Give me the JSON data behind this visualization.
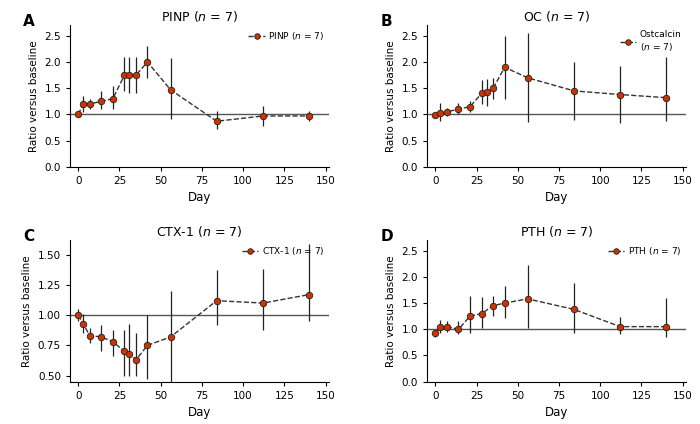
{
  "panel_A": {
    "title": "PINP ($n$ = 7)",
    "legend": "PINP ($n$ = 7)",
    "x": [
      0,
      3,
      7,
      14,
      21,
      28,
      31,
      35,
      42,
      56,
      84,
      112,
      140
    ],
    "y": [
      1.0,
      1.2,
      1.2,
      1.25,
      1.3,
      1.75,
      1.75,
      1.75,
      2.0,
      1.47,
      0.87,
      0.97,
      0.97
    ],
    "yerr_lo": [
      0.05,
      0.15,
      0.1,
      0.15,
      0.2,
      0.3,
      0.35,
      0.35,
      0.3,
      0.55,
      0.15,
      0.2,
      0.1
    ],
    "yerr_hi": [
      0.05,
      0.15,
      0.1,
      0.2,
      0.25,
      0.35,
      0.35,
      0.35,
      0.3,
      0.6,
      0.2,
      0.2,
      0.1
    ],
    "ylim": [
      0,
      2.7
    ],
    "yticks": [
      0,
      0.5,
      1.0,
      1.5,
      2.0,
      2.5
    ]
  },
  "panel_B": {
    "title": "OC ($n$ = 7)",
    "legend": "Ostcalcin\n($n$ = 7)",
    "x": [
      0,
      3,
      7,
      14,
      21,
      28,
      31,
      35,
      42,
      56,
      84,
      112,
      140
    ],
    "y": [
      0.98,
      1.02,
      1.05,
      1.1,
      1.15,
      1.4,
      1.42,
      1.5,
      1.9,
      1.7,
      1.45,
      1.38,
      1.32
    ],
    "yerr_lo": [
      0.05,
      0.15,
      0.08,
      0.1,
      0.1,
      0.2,
      0.25,
      0.2,
      0.6,
      0.85,
      0.55,
      0.55,
      0.45
    ],
    "yerr_hi": [
      0.05,
      0.2,
      0.08,
      0.12,
      0.1,
      0.25,
      0.25,
      0.2,
      0.6,
      0.85,
      0.55,
      0.55,
      0.78
    ],
    "ylim": [
      0,
      2.7
    ],
    "yticks": [
      0,
      0.5,
      1.0,
      1.5,
      2.0,
      2.5
    ]
  },
  "panel_C": {
    "title": "CTX-1 ($n$ = 7)",
    "legend": "CTX-1 ($n$ = 7)",
    "x": [
      0,
      3,
      7,
      14,
      21,
      28,
      31,
      35,
      42,
      56,
      84,
      112,
      140
    ],
    "y": [
      1.0,
      0.93,
      0.83,
      0.82,
      0.78,
      0.7,
      0.68,
      0.63,
      0.75,
      0.82,
      1.12,
      1.1,
      1.17
    ],
    "yerr_lo": [
      0.05,
      0.08,
      0.06,
      0.12,
      0.12,
      0.2,
      0.18,
      0.13,
      0.28,
      0.45,
      0.2,
      0.22,
      0.22
    ],
    "yerr_hi": [
      0.05,
      0.08,
      0.06,
      0.1,
      0.1,
      0.18,
      0.25,
      0.22,
      0.25,
      0.38,
      0.25,
      0.28,
      0.42
    ],
    "ylim": [
      0.45,
      1.62
    ],
    "yticks": [
      0.5,
      0.75,
      1.0,
      1.25,
      1.5
    ]
  },
  "panel_D": {
    "title": "PTH ($n$ = 7)",
    "legend": "PTH ($n$ = 7)",
    "x": [
      0,
      3,
      7,
      14,
      21,
      28,
      35,
      42,
      56,
      84,
      112,
      140
    ],
    "y": [
      0.92,
      1.05,
      1.05,
      1.0,
      1.25,
      1.3,
      1.45,
      1.5,
      1.58,
      1.38,
      1.05,
      1.05
    ],
    "yerr_lo": [
      0.07,
      0.12,
      0.1,
      0.1,
      0.32,
      0.28,
      0.2,
      0.28,
      0.55,
      0.45,
      0.15,
      0.2
    ],
    "yerr_hi": [
      0.07,
      0.12,
      0.1,
      0.15,
      0.38,
      0.32,
      0.18,
      0.32,
      0.65,
      0.5,
      0.18,
      0.55
    ],
    "ylim": [
      0,
      2.7
    ],
    "yticks": [
      0,
      0.5,
      1.0,
      1.5,
      2.0,
      2.5
    ]
  },
  "dot_color": "#cc3300",
  "line_color": "#333333",
  "hline_color": "#555555",
  "xlabel": "Day",
  "ylabel": "Ratio versus baseline",
  "xlim": [
    -5,
    152
  ],
  "xticks": [
    0,
    25,
    50,
    75,
    100,
    125,
    150
  ]
}
